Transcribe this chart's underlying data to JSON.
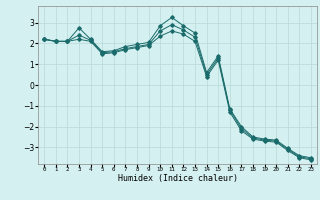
{
  "xlabel": "Humidex (Indice chaleur)",
  "bg_color": "#d5f0f0",
  "grid_color": "#b8dada",
  "line_color": "#1a6b6b",
  "xlim": [
    -0.5,
    23.5
  ],
  "ylim": [
    -3.8,
    3.8
  ],
  "yticks": [
    -3,
    -2,
    -1,
    0,
    1,
    2,
    3
  ],
  "xticks": [
    0,
    1,
    2,
    3,
    4,
    5,
    6,
    7,
    8,
    9,
    10,
    11,
    12,
    13,
    14,
    15,
    16,
    17,
    18,
    19,
    20,
    21,
    22,
    23
  ],
  "series1_x": [
    0,
    1,
    2,
    3,
    4,
    5,
    6,
    7,
    8,
    9,
    10,
    11,
    12,
    13,
    14,
    15,
    16,
    17,
    18,
    19,
    20,
    21,
    22,
    23
  ],
  "series1_y": [
    2.2,
    2.1,
    2.1,
    2.75,
    2.2,
    1.6,
    1.65,
    1.85,
    1.95,
    2.05,
    2.85,
    3.25,
    2.85,
    2.5,
    0.6,
    1.4,
    -1.15,
    -2.0,
    -2.5,
    -2.6,
    -2.65,
    -3.05,
    -3.4,
    -3.5
  ],
  "series2_x": [
    0,
    1,
    2,
    3,
    4,
    5,
    6,
    7,
    8,
    9,
    10,
    11,
    12,
    13,
    14,
    15,
    16,
    17,
    18,
    19,
    20,
    21,
    22,
    23
  ],
  "series2_y": [
    2.2,
    2.1,
    2.1,
    2.4,
    2.15,
    1.55,
    1.6,
    1.75,
    1.85,
    1.95,
    2.6,
    2.9,
    2.65,
    2.3,
    0.5,
    1.3,
    -1.2,
    -2.1,
    -2.55,
    -2.65,
    -2.7,
    -3.1,
    -3.45,
    -3.55
  ],
  "series3_x": [
    0,
    1,
    2,
    3,
    4,
    5,
    6,
    7,
    8,
    9,
    10,
    11,
    12,
    13,
    14,
    15,
    16,
    17,
    18,
    19,
    20,
    21,
    22,
    23
  ],
  "series3_y": [
    2.2,
    2.1,
    2.1,
    2.2,
    2.1,
    1.5,
    1.55,
    1.7,
    1.8,
    1.9,
    2.35,
    2.6,
    2.45,
    2.1,
    0.4,
    1.2,
    -1.3,
    -2.2,
    -2.6,
    -2.7,
    -2.75,
    -3.15,
    -3.5,
    -3.6
  ]
}
